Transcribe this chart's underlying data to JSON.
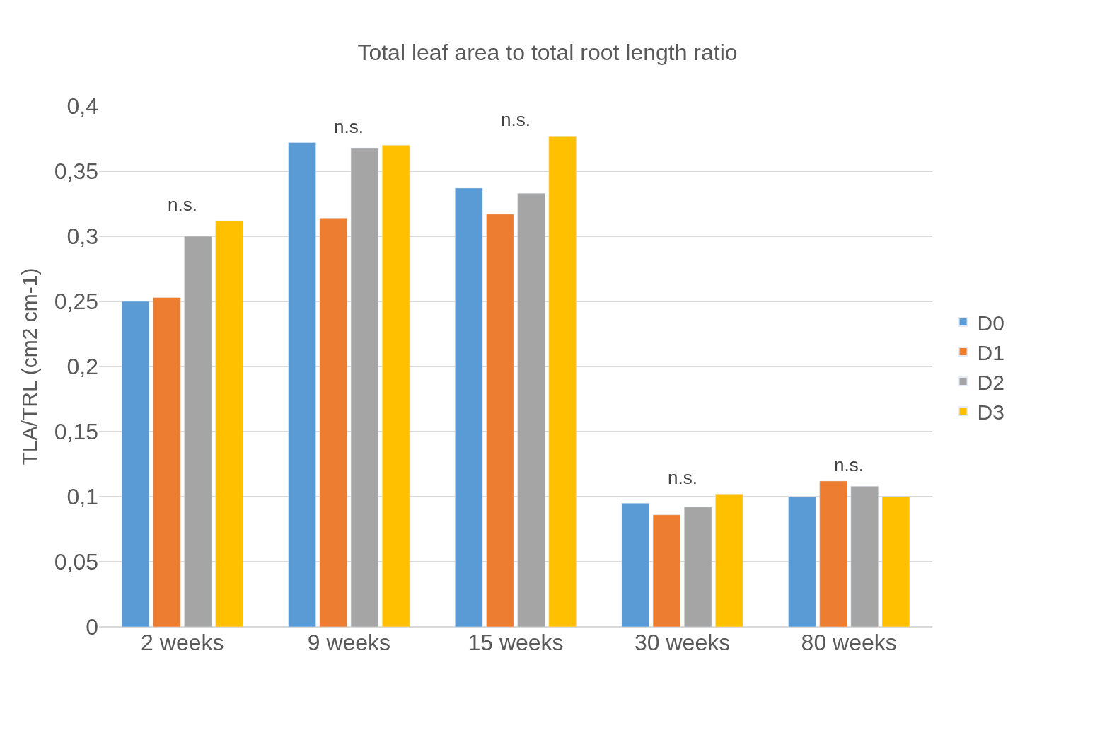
{
  "chart_data": {
    "type": "bar",
    "title": "Total leaf area to total root length ratio",
    "ylabel": "TLA/TRL (cm2 cm-1)",
    "categories": [
      "2 weeks",
      "9 weeks",
      "15 weeks",
      "30 weeks",
      "80 weeks"
    ],
    "series": [
      {
        "name": "D0",
        "color": "#5b9bd5",
        "values": [
          0.25,
          0.372,
          0.337,
          0.095,
          0.1
        ]
      },
      {
        "name": "D1",
        "color": "#ed7d31",
        "values": [
          0.253,
          0.314,
          0.317,
          0.086,
          0.112
        ]
      },
      {
        "name": "D2",
        "color": "#a5a5a5",
        "values": [
          0.3,
          0.368,
          0.333,
          0.092,
          0.108
        ]
      },
      {
        "name": "D3",
        "color": "#ffc000",
        "values": [
          0.312,
          0.37,
          0.377,
          0.102,
          0.1
        ]
      }
    ],
    "ylim": [
      0,
      0.4
    ],
    "yticks": [
      {
        "value": 0,
        "label": "0"
      },
      {
        "value": 0.05,
        "label": "0,05"
      },
      {
        "value": 0.1,
        "label": "0,1"
      },
      {
        "value": 0.15,
        "label": "0,15"
      },
      {
        "value": 0.2,
        "label": "0,2"
      },
      {
        "value": 0.25,
        "label": "0,25"
      },
      {
        "value": 0.3,
        "label": "0,3"
      },
      {
        "value": 0.35,
        "label": "0,35"
      },
      {
        "value": 0.4,
        "label": "0,4"
      }
    ],
    "annotations": [
      "n.s.",
      "n.s.",
      "n.s.",
      "n.s.",
      "n.s."
    ],
    "grid": "y",
    "legend": "right"
  }
}
